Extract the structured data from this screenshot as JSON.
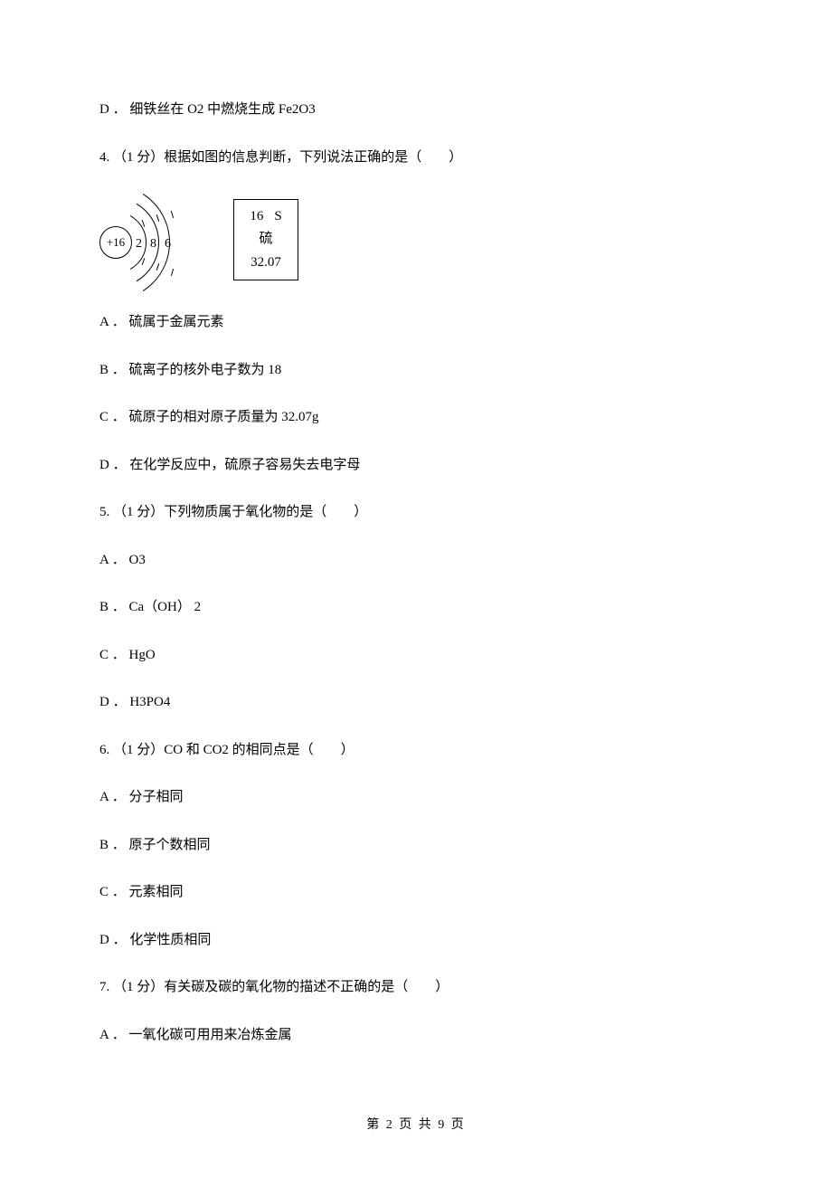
{
  "q3": {
    "optD": "D ． 细铁丝在 O2 中燃烧生成 Fe2O3"
  },
  "q4": {
    "stem": "4. （1 分）根据如图的信息判断，下列说法正确的是（　　）",
    "atom": {
      "nucleus": "+16",
      "shells": [
        "2",
        "8",
        "6"
      ]
    },
    "element_box": {
      "number": "16",
      "symbol": "S",
      "name": "硫",
      "mass": "32.07"
    },
    "optA": "A ． 硫属于金属元素",
    "optB": "B ． 硫离子的核外电子数为 18",
    "optC": "C ． 硫原子的相对原子质量为 32.07g",
    "optD": "D ． 在化学反应中，硫原子容易失去电字母"
  },
  "q5": {
    "stem": "5. （1 分）下列物质属于氧化物的是（　　）",
    "optA": "A ． O3",
    "optB": "B ． Ca（OH） 2",
    "optC": "C ． HgO",
    "optD": "D ． H3PO4"
  },
  "q6": {
    "stem": "6. （1 分）CO 和 CO2 的相同点是（　　）",
    "optA": "A ． 分子相同",
    "optB": "B ． 原子个数相同",
    "optC": "C ． 元素相同",
    "optD": "D ． 化学性质相同"
  },
  "q7": {
    "stem": "7. （1 分）有关碳及碳的氧化物的描述不正确的是（　　）",
    "optA": "A ． 一氧化碳可用用来冶炼金属"
  },
  "footer": "第 2 页 共 9 页"
}
